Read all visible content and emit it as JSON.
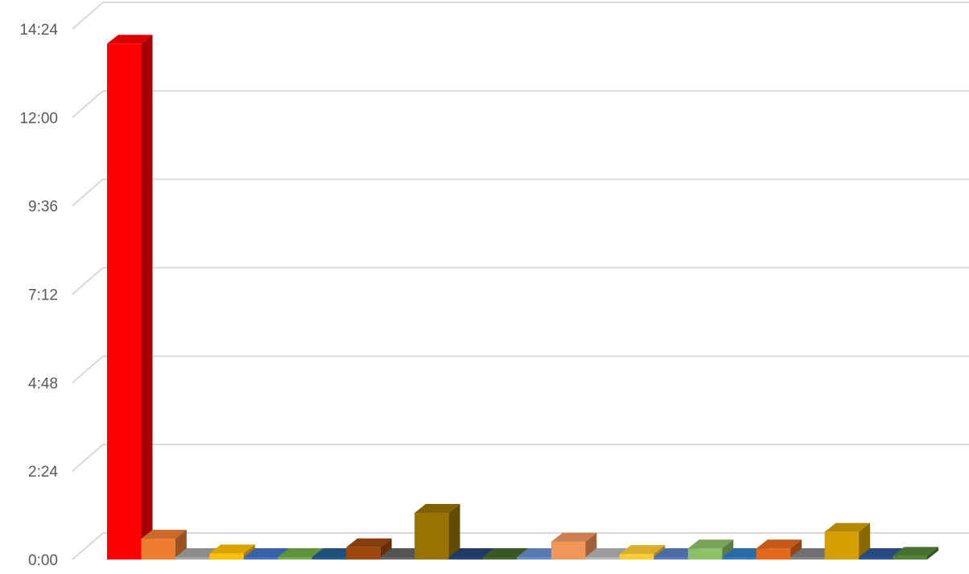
{
  "chart_data": {
    "type": "bar",
    "title": "",
    "xlabel": "",
    "ylabel": "",
    "ylim_minutes": [
      0,
      864
    ],
    "y_ticks": [
      "0:00",
      "2:24",
      "4:48",
      "7:12",
      "9:36",
      "12:00",
      "14:24"
    ],
    "y_tick_minutes": [
      0,
      144,
      288,
      432,
      576,
      720,
      864
    ],
    "grid": true,
    "legend": "none",
    "three_d": true,
    "bars": [
      {
        "minutes": 840,
        "color": "#FF0000"
      },
      {
        "minutes": 34,
        "color": "#ED7D31"
      },
      {
        "minutes": 0,
        "color": "#A5A5A5"
      },
      {
        "minutes": 10,
        "color": "#FFC000"
      },
      {
        "minutes": 0,
        "color": "#4472C4"
      },
      {
        "minutes": 0,
        "color": "#70AD47"
      },
      {
        "minutes": 0,
        "color": "#255E91"
      },
      {
        "minutes": 20,
        "color": "#9E480E"
      },
      {
        "minutes": 0,
        "color": "#636363"
      },
      {
        "minutes": 76,
        "color": "#997300"
      },
      {
        "minutes": 0,
        "color": "#264478"
      },
      {
        "minutes": 0,
        "color": "#43682B"
      },
      {
        "minutes": 0,
        "color": "#698ED0"
      },
      {
        "minutes": 29,
        "color": "#F1975A"
      },
      {
        "minutes": 0,
        "color": "#B7B7B7"
      },
      {
        "minutes": 9,
        "color": "#FFCD33"
      },
      {
        "minutes": 0,
        "color": "#5B7FC2"
      },
      {
        "minutes": 18,
        "color": "#8CC168"
      },
      {
        "minutes": 0,
        "color": "#327DC2"
      },
      {
        "minutes": 18,
        "color": "#E5671B"
      },
      {
        "minutes": 0,
        "color": "#848484"
      },
      {
        "minutes": 45,
        "color": "#D4A000"
      },
      {
        "minutes": 0,
        "color": "#2F5597"
      },
      {
        "minutes": 6,
        "color": "#548235"
      }
    ]
  }
}
